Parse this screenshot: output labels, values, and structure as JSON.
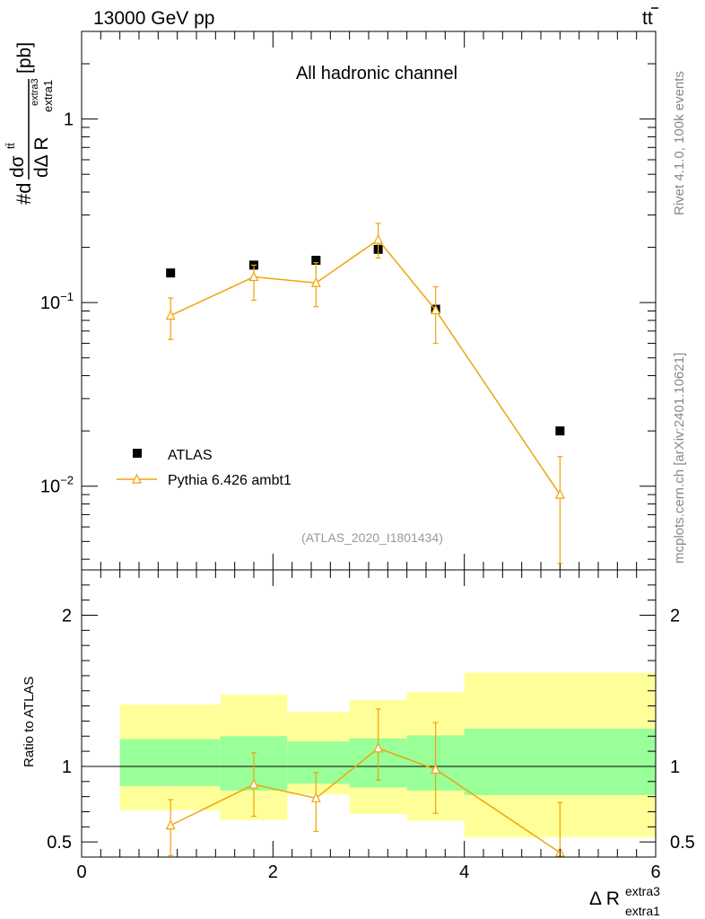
{
  "header": {
    "energy": "13000 GeV pp",
    "process_main": "tt",
    "process_bar": "̅"
  },
  "side_labels": {
    "rivet": "Rivet 4.1.0,  100k events",
    "mcplots": "mcplots.cern.ch [arXiv:2401.10621]"
  },
  "chart_data": [
    {
      "type": "scatter",
      "panel": "main",
      "title": "All hadronic channel",
      "watermark": "(ATLAS_2020_I1801434)",
      "ylabel_parts": {
        "prefix": "#d",
        "num": "dσ",
        "num_sup": "tt̄",
        "den": "dΔ R",
        "den_sup": "extra3",
        "den_sub": "extra1",
        "unit": "[pb]"
      },
      "yscale": "log",
      "xlim": [
        0,
        6
      ],
      "ylim": [
        0.0035,
        3.0
      ],
      "yticks": [
        {
          "value": 1.0,
          "base": "1",
          "exp": ""
        },
        {
          "value": 0.1,
          "base": "10",
          "exp": "−1"
        },
        {
          "value": 0.01,
          "base": "10",
          "exp": "−2"
        }
      ],
      "legend_position": "lower-left",
      "series": [
        {
          "name": "ATLAS",
          "marker": "square",
          "color": "#000000",
          "x": [
            0.93,
            1.8,
            2.45,
            3.1,
            3.7,
            5.0
          ],
          "y": [
            0.145,
            0.16,
            0.17,
            0.195,
            0.092,
            0.02
          ]
        },
        {
          "name": "Pythia 6.426 ambt1",
          "marker": "open-triangle",
          "color": "#f0a30a",
          "x": [
            0.93,
            1.8,
            2.45,
            3.1,
            3.7,
            5.0
          ],
          "y": [
            0.085,
            0.138,
            0.128,
            0.22,
            0.091,
            0.009
          ],
          "yerr_low": [
            0.063,
            0.103,
            0.095,
            0.175,
            0.06,
            0.0038
          ],
          "yerr_high": [
            0.106,
            0.16,
            0.165,
            0.27,
            0.122,
            0.0145
          ]
        }
      ]
    },
    {
      "type": "scatter",
      "panel": "ratio",
      "ylabel": "Ratio to ATLAS",
      "xlabel_main": "Δ R",
      "xlabel_sup": "extra3",
      "xlabel_sub": "extra1",
      "xlim": [
        0,
        6
      ],
      "ylim": [
        0.4,
        2.3
      ],
      "xticks": [
        "0",
        "2",
        "4",
        "6"
      ],
      "xtick_values": [
        0,
        2,
        4,
        6
      ],
      "yticks": [
        "0.5",
        "1",
        "2"
      ],
      "ytick_values": [
        0.5,
        1,
        2
      ],
      "reference_line": 1,
      "bands": [
        {
          "x0": 0.4,
          "x1": 1.45,
          "yellow": [
            0.71,
            1.41
          ],
          "green": [
            0.87,
            1.18
          ]
        },
        {
          "x0": 1.45,
          "x1": 2.15,
          "yellow": [
            0.645,
            1.475
          ],
          "green": [
            0.84,
            1.2
          ]
        },
        {
          "x0": 2.15,
          "x1": 2.8,
          "yellow": [
            0.815,
            1.36
          ],
          "green": [
            0.885,
            1.165
          ]
        },
        {
          "x0": 2.8,
          "x1": 3.4,
          "yellow": [
            0.685,
            1.44
          ],
          "green": [
            0.86,
            1.185
          ]
        },
        {
          "x0": 3.4,
          "x1": 4.0,
          "yellow": [
            0.64,
            1.49
          ],
          "green": [
            0.84,
            1.205
          ]
        },
        {
          "x0": 4.0,
          "x1": 6.0,
          "yellow": [
            0.53,
            1.62
          ],
          "green": [
            0.81,
            1.25
          ]
        }
      ],
      "series": [
        {
          "name": "Pythia 6.426 ambt1 / ATLAS",
          "color": "#f0a30a",
          "x": [
            0.93,
            1.8,
            2.45,
            3.1,
            3.7,
            5.0
          ],
          "y": [
            0.61,
            0.88,
            0.79,
            1.12,
            0.98,
            0.43
          ],
          "yerr_low": [
            0.41,
            0.67,
            0.57,
            0.91,
            0.69,
            0.41
          ],
          "yerr_high": [
            0.78,
            1.09,
            0.96,
            1.38,
            1.29,
            0.76
          ]
        }
      ]
    }
  ]
}
